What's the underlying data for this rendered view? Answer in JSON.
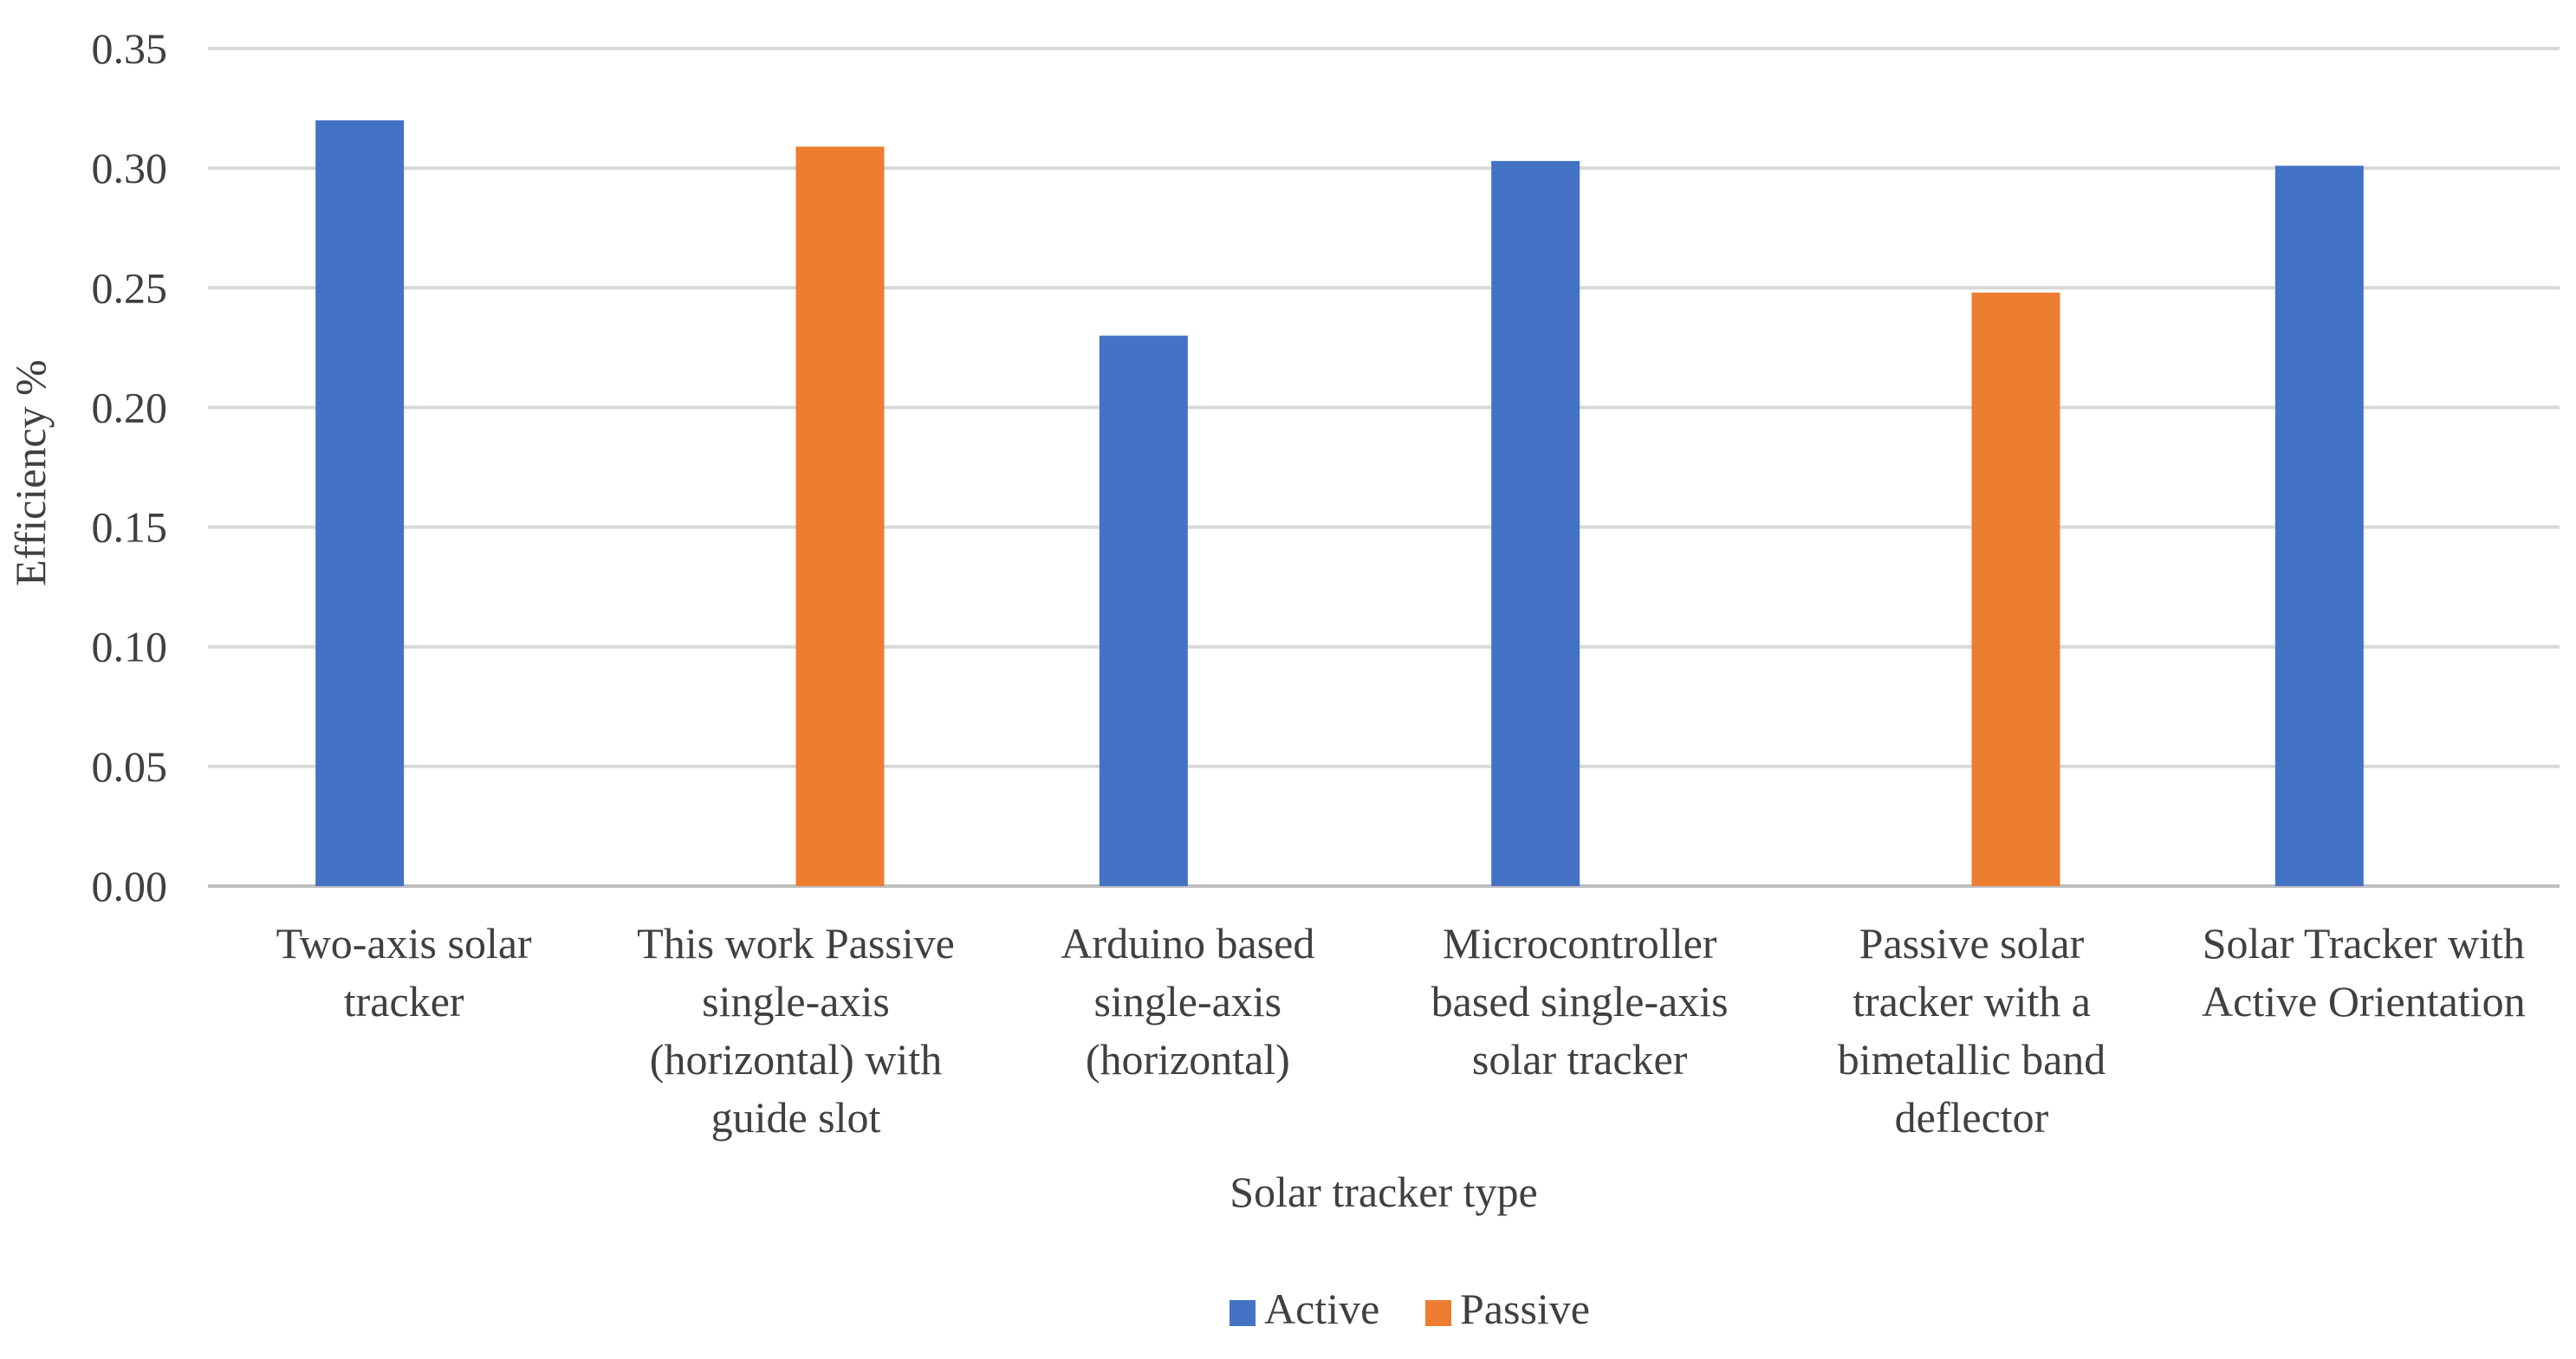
{
  "chart_data": {
    "type": "bar",
    "title": "",
    "xlabel": "Solar tracker type",
    "ylabel": "Efficiency %",
    "ylim": [
      0,
      0.35
    ],
    "yticks": [
      "0.00",
      "0.05",
      "0.10",
      "0.15",
      "0.20",
      "0.25",
      "0.30",
      "0.35"
    ],
    "grid": true,
    "legend_position": "bottom",
    "categories": [
      [
        "Two-axis solar",
        "tracker"
      ],
      [
        "This work Passive",
        "single-axis",
        "(horizontal) with",
        "guide slot"
      ],
      [
        "Arduino based",
        "single-axis",
        "(horizontal)"
      ],
      [
        "Microcontroller",
        "based single-axis",
        "solar tracker"
      ],
      [
        "Passive solar",
        "tracker with a",
        "bimetallic band",
        "deflector"
      ],
      [
        "Solar Tracker with",
        "Active Orientation"
      ]
    ],
    "series": [
      {
        "name": "Active",
        "color": "#4472C4",
        "values": [
          0.32,
          null,
          0.23,
          0.303,
          null,
          0.301
        ]
      },
      {
        "name": "Passive",
        "color": "#ED7D31",
        "values": [
          null,
          0.309,
          null,
          null,
          0.248,
          null
        ]
      }
    ]
  }
}
